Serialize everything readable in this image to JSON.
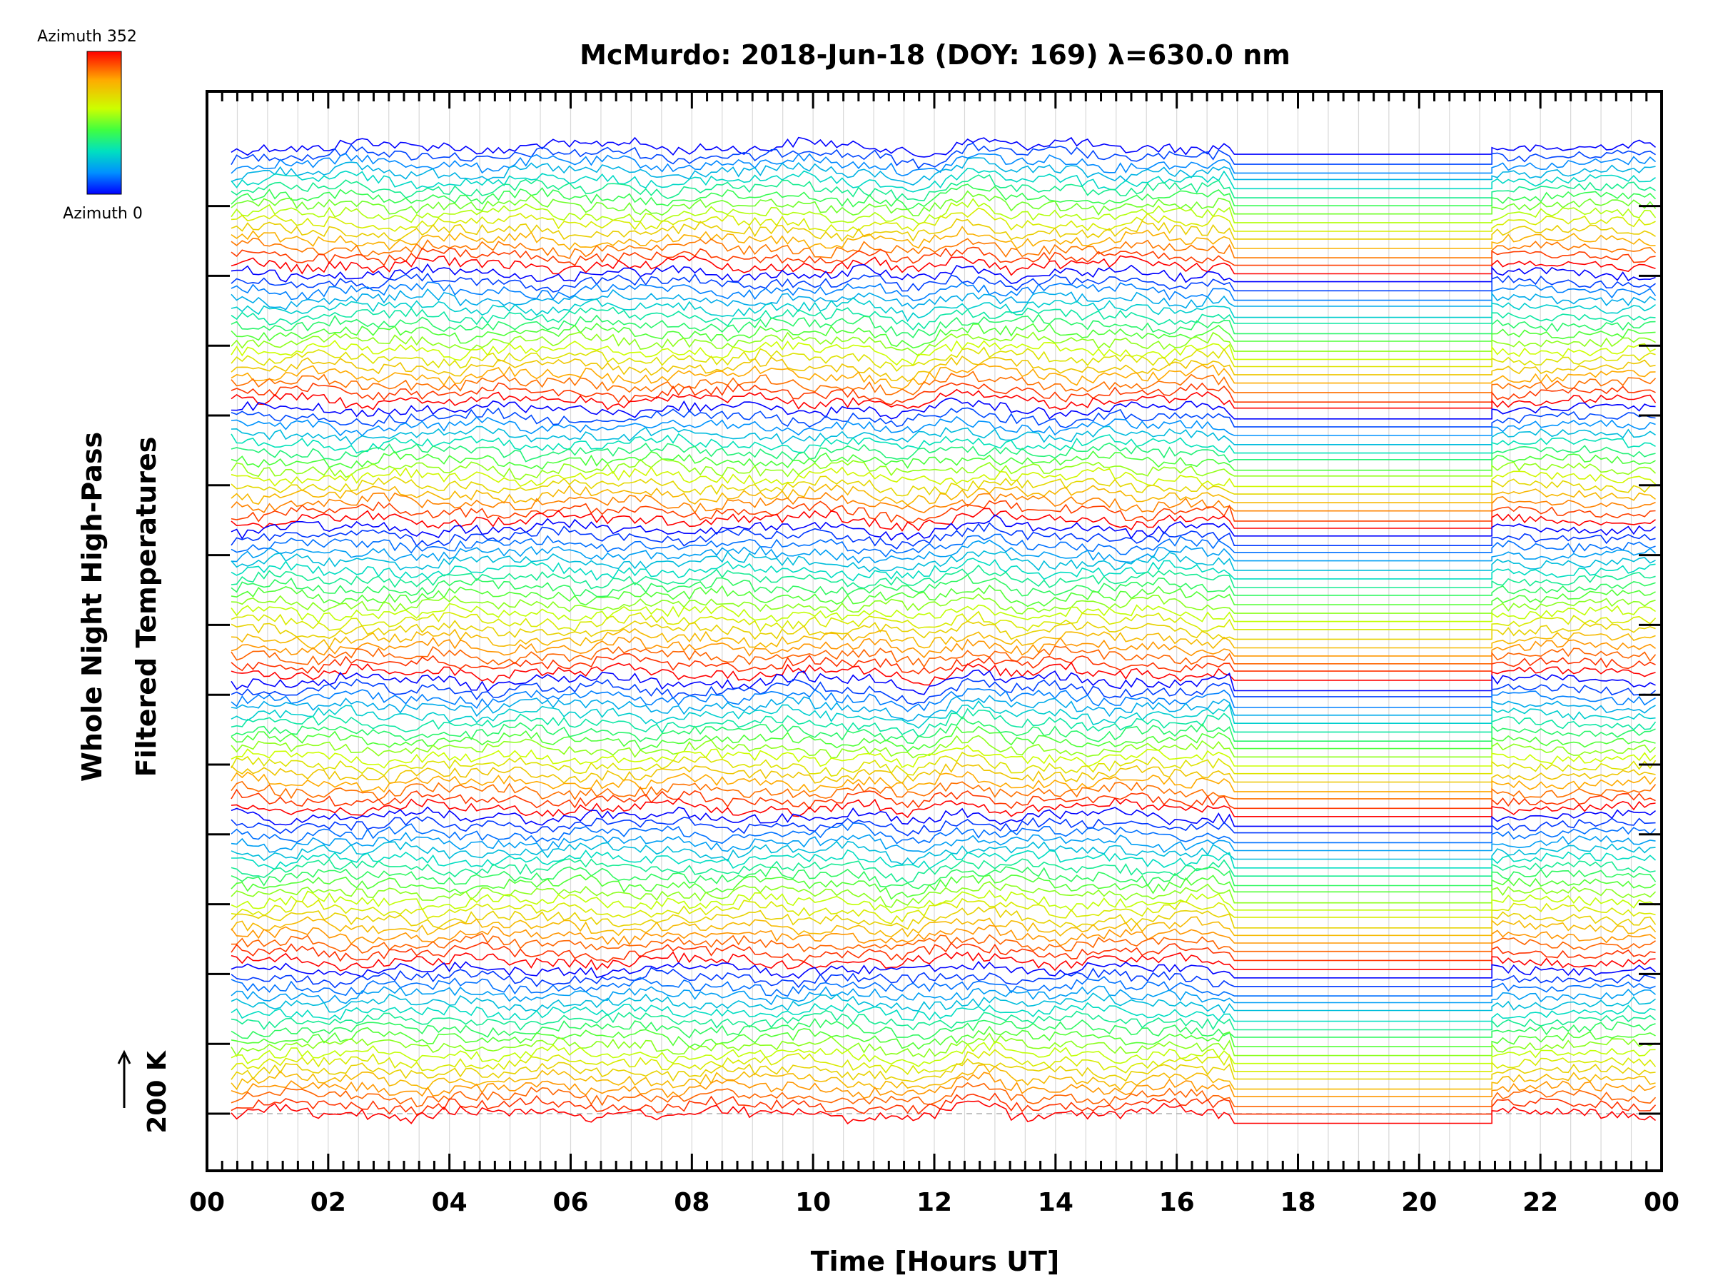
{
  "chart_data": {
    "type": "line",
    "title": "McMurdo: 2018-Jun-18 (DOY: 169) λ=630.0 nm",
    "xlabel": "Time [Hours UT]",
    "ylabel_line1": "Whole Night High-Pass",
    "ylabel_line2": "Filtered Temperatures",
    "xlim": [
      0,
      24
    ],
    "x_tick_labels": [
      "00",
      "02",
      "04",
      "06",
      "08",
      "10",
      "12",
      "14",
      "16",
      "18",
      "20",
      "22",
      "00"
    ],
    "scale_bar_label": "200 K",
    "colorbar": {
      "top_label": "Azimuth 352",
      "bottom_label": "Azimuth 0",
      "colors": [
        "#ff0000",
        "#ff8000",
        "#ffff00",
        "#80ff00",
        "#00ff80",
        "#00ffff",
        "#0080ff",
        "#0000ff"
      ]
    },
    "series_count": 115,
    "data_start_hour": 0.4,
    "data_end_hour": 23.9,
    "gap_start_hour": 16.95,
    "gap_end_hour": 21.2,
    "block_boundaries": [
      0,
      15,
      31,
      45,
      63,
      79,
      97,
      115
    ]
  }
}
